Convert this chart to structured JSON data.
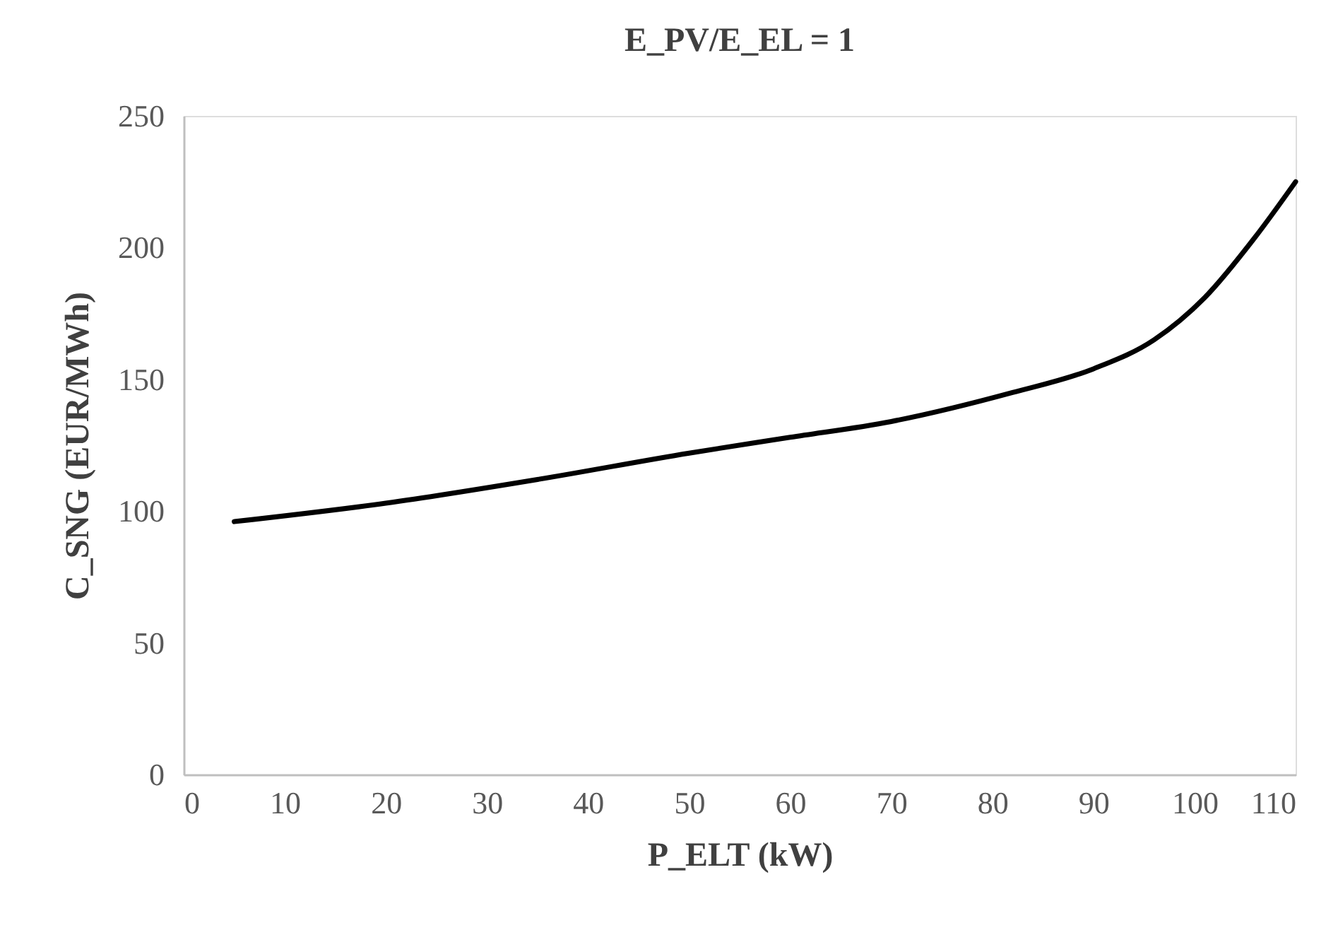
{
  "chart_data": {
    "type": "line",
    "title": "E_PV/E_EL = 1",
    "xlabel": "P_ELT (kW)",
    "ylabel": "C_SNG (EUR/MWh)",
    "x": [
      5,
      20,
      35,
      50,
      60,
      70,
      82,
      90,
      96,
      101,
      106,
      110
    ],
    "series": [
      {
        "color": "#000000",
        "values": [
          96,
          103,
          112,
          122,
          128,
          134,
          145,
          154,
          165,
          181,
          204,
          225
        ]
      }
    ],
    "xlim": [
      0,
      110
    ],
    "xticks": [
      0,
      10,
      20,
      30,
      40,
      50,
      60,
      70,
      80,
      90,
      100,
      110
    ],
    "ylim": [
      0,
      250
    ],
    "yticks": [
      0,
      50,
      100,
      150,
      200,
      250
    ],
    "grid": false,
    "legend": false,
    "marker": "none",
    "line_style": "solid"
  }
}
